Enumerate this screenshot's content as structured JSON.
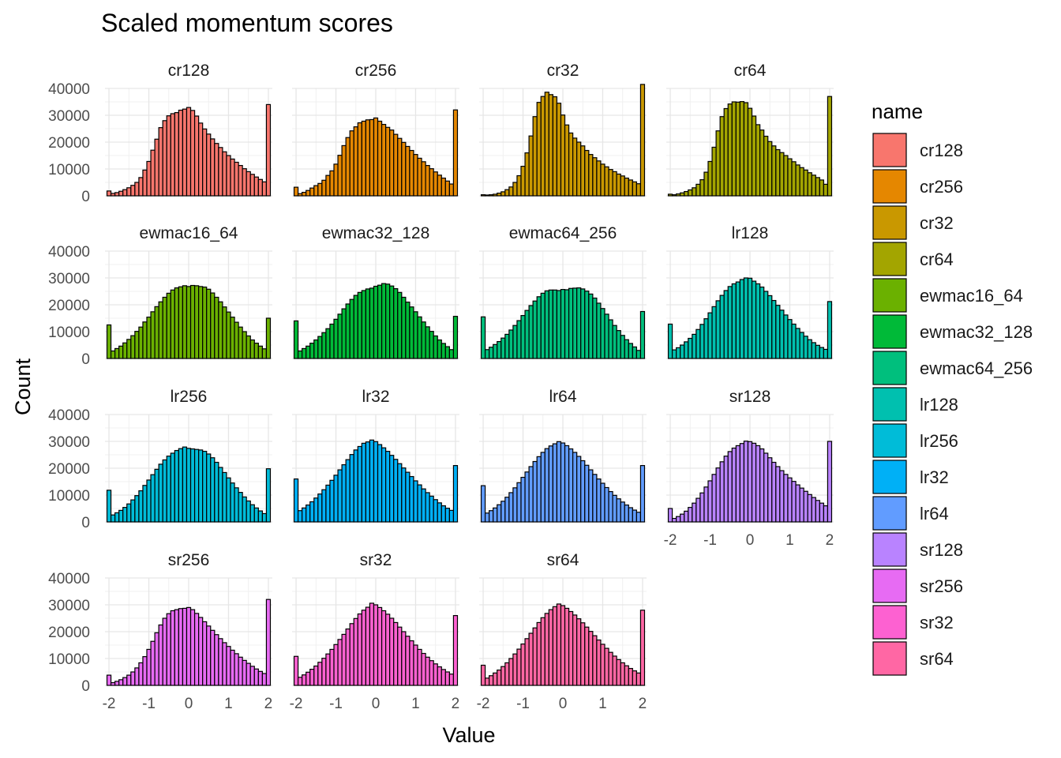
{
  "chart_data": {
    "type": "bar",
    "chart_kind": "histogram",
    "title": "Scaled momentum scores",
    "xlabel": "Value",
    "ylabel": "Count",
    "xlim": [
      -2.1,
      2.1
    ],
    "ylim": [
      0,
      40000
    ],
    "x_ticks": [
      -2,
      -1,
      0,
      1,
      2
    ],
    "x_tick_labels": [
      "-2",
      "-1",
      "0",
      "1",
      "2"
    ],
    "y_ticks": [
      0,
      10000,
      20000,
      30000,
      40000
    ],
    "y_tick_labels": [
      "0",
      "10000",
      "20000",
      "30000",
      "40000"
    ],
    "bin_width": 0.1,
    "bin_centers": [
      -2.0,
      -1.9,
      -1.8,
      -1.7,
      -1.6,
      -1.5,
      -1.4,
      -1.3,
      -1.2,
      -1.1,
      -1.0,
      -0.9,
      -0.8,
      -0.7,
      -0.6,
      -0.5,
      -0.4,
      -0.3,
      -0.2,
      -0.1,
      0.0,
      0.1,
      0.2,
      0.3,
      0.4,
      0.5,
      0.6,
      0.7,
      0.8,
      0.9,
      1.0,
      1.1,
      1.2,
      1.3,
      1.4,
      1.5,
      1.6,
      1.7,
      1.8,
      1.9,
      2.0
    ],
    "grid": true,
    "legend_title": "name",
    "legend_position": "right",
    "series": [
      {
        "name": "cr128",
        "color": "#F8766D",
        "values": [
          1800,
          900,
          1200,
          1700,
          2300,
          3000,
          3900,
          5000,
          6800,
          9600,
          12800,
          17000,
          21100,
          25400,
          28000,
          29800,
          30600,
          31000,
          31900,
          32300,
          32900,
          31800,
          29700,
          27100,
          24900,
          23000,
          21200,
          19500,
          18000,
          16400,
          15000,
          13700,
          12500,
          11300,
          10100,
          9000,
          8000,
          7000,
          6100,
          5200,
          34000
        ]
      },
      {
        "name": "cr256",
        "color": "#E58700",
        "values": [
          3200,
          800,
          1300,
          2000,
          2900,
          3800,
          4600,
          5800,
          7600,
          9300,
          11800,
          15100,
          18700,
          21700,
          24200,
          25700,
          27200,
          27800,
          28300,
          28400,
          29000,
          27800,
          26600,
          25500,
          24500,
          22900,
          21400,
          19900,
          18400,
          16900,
          15400,
          14000,
          12700,
          11300,
          10100,
          8900,
          7700,
          6600,
          5500,
          4400,
          32000
        ]
      },
      {
        "name": "cr32",
        "color": "#C99800",
        "values": [
          400,
          300,
          400,
          600,
          1000,
          1500,
          2300,
          3300,
          5000,
          7500,
          11000,
          16000,
          22300,
          29500,
          34800,
          37000,
          38600,
          37700,
          36900,
          34500,
          30100,
          26400,
          23400,
          21500,
          20000,
          18600,
          16900,
          15400,
          14200,
          13000,
          11800,
          10800,
          9800,
          9000,
          8100,
          7400,
          6600,
          5900,
          5200,
          4500,
          41500
        ]
      },
      {
        "name": "cr64",
        "color": "#A3A500",
        "values": [
          600,
          400,
          700,
          1100,
          1600,
          2200,
          3000,
          4300,
          6000,
          8800,
          12800,
          18100,
          24200,
          29500,
          32500,
          34200,
          35000,
          34900,
          35100,
          34700,
          32600,
          29700,
          26500,
          24500,
          22200,
          20200,
          18600,
          17200,
          16100,
          15000,
          13800,
          12700,
          11500,
          10500,
          9600,
          8600,
          7700,
          6800,
          5900,
          4300,
          37000
        ]
      },
      {
        "name": "ewmac16_64",
        "color": "#6BB100",
        "values": [
          12500,
          2800,
          3700,
          4600,
          5800,
          7100,
          8500,
          10100,
          11700,
          13600,
          15400,
          17400,
          19300,
          21100,
          22800,
          24300,
          25500,
          26300,
          26700,
          27100,
          26800,
          27200,
          27100,
          26800,
          26600,
          25800,
          24400,
          22800,
          21100,
          19200,
          17300,
          15400,
          13500,
          11700,
          10000,
          8400,
          6900,
          5700,
          4600,
          3600,
          15000
        ]
      },
      {
        "name": "ewmac32_128",
        "color": "#00BA38",
        "values": [
          14000,
          2800,
          3700,
          4600,
          5700,
          6900,
          8200,
          9600,
          11100,
          12800,
          14600,
          16500,
          18500,
          20300,
          22000,
          23500,
          24600,
          25300,
          25900,
          26200,
          26900,
          27300,
          27900,
          27700,
          27000,
          26000,
          24600,
          22800,
          21000,
          19200,
          17400,
          15500,
          13600,
          11800,
          10100,
          8400,
          6900,
          5600,
          4400,
          3300,
          15700
        ]
      },
      {
        "name": "ewmac64_256",
        "color": "#00BF7D",
        "values": [
          15500,
          3300,
          4200,
          5200,
          6300,
          7600,
          9000,
          10600,
          12300,
          14100,
          16000,
          17900,
          19700,
          21400,
          23000,
          24300,
          25200,
          25500,
          25500,
          25300,
          25700,
          25600,
          26100,
          26200,
          26300,
          25900,
          25100,
          24000,
          22500,
          20600,
          18600,
          16500,
          14400,
          12300,
          10400,
          8600,
          7000,
          5600,
          4300,
          3000,
          17500
        ]
      },
      {
        "name": "lr128",
        "color": "#00C0AF",
        "values": [
          12800,
          3200,
          4000,
          5000,
          6200,
          7500,
          9000,
          10800,
          12700,
          14800,
          17000,
          19300,
          21500,
          23500,
          25300,
          26800,
          27800,
          28500,
          29400,
          30000,
          29900,
          28800,
          27800,
          26600,
          25000,
          23400,
          21600,
          19800,
          18000,
          16200,
          14500,
          12800,
          11200,
          9700,
          8300,
          7000,
          5900,
          4900,
          4100,
          3400,
          21200
        ]
      },
      {
        "name": "lr256",
        "color": "#00BCD8",
        "values": [
          11800,
          2600,
          3400,
          4300,
          5400,
          6700,
          8200,
          9800,
          11600,
          13600,
          15600,
          17600,
          19600,
          21500,
          23100,
          24500,
          25600,
          26600,
          27300,
          27900,
          27400,
          27200,
          27000,
          26800,
          26300,
          25300,
          23900,
          22200,
          20300,
          18400,
          16400,
          14500,
          12700,
          11000,
          9300,
          7800,
          6400,
          5200,
          4100,
          3100,
          19800
        ]
      },
      {
        "name": "lr32",
        "color": "#00B0F6",
        "values": [
          16000,
          4200,
          5200,
          6300,
          7500,
          8900,
          10400,
          12000,
          13700,
          15500,
          17400,
          19400,
          21300,
          23200,
          25100,
          26800,
          28100,
          29300,
          29800,
          30500,
          29900,
          28800,
          27600,
          26300,
          24800,
          23300,
          21700,
          20100,
          18500,
          16900,
          15300,
          13800,
          12300,
          10900,
          9600,
          8300,
          7100,
          6000,
          5100,
          4300,
          21000
        ]
      },
      {
        "name": "lr64",
        "color": "#619CFF",
        "values": [
          13500,
          3300,
          4200,
          5200,
          6400,
          7700,
          9200,
          10900,
          12700,
          14600,
          16600,
          18600,
          20600,
          22500,
          24300,
          25900,
          27300,
          28300,
          29100,
          29900,
          29400,
          28400,
          27200,
          25900,
          24400,
          22800,
          21100,
          19400,
          17700,
          16000,
          14400,
          12800,
          11300,
          9900,
          8600,
          7400,
          6300,
          5300,
          4400,
          3600,
          21000
        ]
      },
      {
        "name": "sr128",
        "color": "#B983FF",
        "values": [
          5000,
          1300,
          2000,
          2900,
          4000,
          5400,
          7000,
          8800,
          10800,
          13000,
          15300,
          17700,
          20100,
          22400,
          24500,
          26200,
          27500,
          28400,
          29200,
          30100,
          29900,
          29300,
          28400,
          27200,
          25600,
          23900,
          22200,
          20600,
          19100,
          17700,
          16400,
          15100,
          13800,
          12600,
          11400,
          10200,
          9100,
          8000,
          7000,
          6000,
          30000
        ]
      },
      {
        "name": "sr256",
        "color": "#E76BF3",
        "values": [
          3800,
          1000,
          1500,
          2100,
          2900,
          3800,
          5000,
          6500,
          8400,
          10700,
          13400,
          16400,
          19600,
          22500,
          25000,
          26700,
          27800,
          28200,
          28600,
          28700,
          29000,
          28200,
          26800,
          25300,
          23700,
          22100,
          20500,
          18900,
          17400,
          15900,
          14500,
          13100,
          11800,
          10500,
          9300,
          8200,
          7100,
          6100,
          5200,
          4400,
          32000
        ]
      },
      {
        "name": "sr32",
        "color": "#FD61D1",
        "values": [
          10800,
          3000,
          3900,
          4900,
          6000,
          7200,
          8600,
          10100,
          11700,
          13400,
          15200,
          17100,
          19000,
          21000,
          23000,
          24900,
          26600,
          28000,
          29100,
          30600,
          30000,
          29000,
          27800,
          26500,
          25000,
          23400,
          21700,
          20000,
          18300,
          16600,
          15000,
          13400,
          11900,
          10500,
          9200,
          8000,
          6900,
          5900,
          5000,
          4200,
          26000
        ]
      },
      {
        "name": "sr64",
        "color": "#FF67A4",
        "values": [
          7500,
          2700,
          3600,
          4600,
          5700,
          7000,
          8400,
          10000,
          11700,
          13500,
          15400,
          17400,
          19400,
          21400,
          23400,
          25200,
          26800,
          28200,
          29300,
          30300,
          29700,
          28700,
          27500,
          26200,
          24800,
          23300,
          21700,
          20100,
          18500,
          16900,
          15300,
          13800,
          12300,
          10900,
          9600,
          8400,
          7300,
          6300,
          5400,
          4600,
          28000
        ]
      }
    ]
  }
}
